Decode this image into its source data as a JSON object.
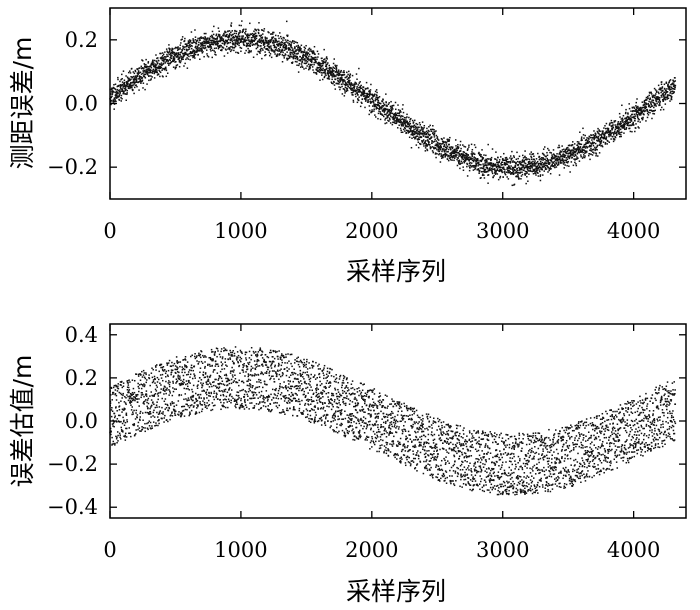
{
  "chart_data": [
    {
      "type": "scatter",
      "title": "",
      "xlabel": "采样序列",
      "ylabel": "测距误差/m",
      "xlim": [
        0,
        4400
      ],
      "ylim": [
        -0.3,
        0.3
      ],
      "x_ticks": [
        0,
        1000,
        2000,
        3000,
        4000
      ],
      "y_ticks": [
        -0.2,
        0.0,
        0.2
      ],
      "x_tick_labels": [
        "0",
        "1000",
        "2000",
        "3000",
        "4000"
      ],
      "y_tick_labels": [
        "−0.2",
        "0.0",
        "0.2"
      ],
      "grid": false,
      "series": [
        {
          "n_points": 4320,
          "trend": {
            "amplitude": 0.2,
            "period": 4200,
            "phase_offset": 0.02,
            "offset": 0.0
          },
          "spread": 0.025,
          "sampled_trend": {
            "x": [
              0,
              500,
              1000,
              1100,
              1500,
              2000,
              2500,
              3000,
              3150,
              3500,
              4000,
              4320
            ],
            "y": [
              0.02,
              0.15,
              0.21,
              0.22,
              0.18,
              0.05,
              -0.09,
              -0.19,
              -0.2,
              -0.17,
              -0.06,
              0.02
            ]
          }
        }
      ]
    },
    {
      "type": "scatter",
      "title": "",
      "xlabel": "采样序列",
      "ylabel": "误差估值/m",
      "xlim": [
        0,
        4400
      ],
      "ylim": [
        -0.45,
        0.45
      ],
      "x_ticks": [
        0,
        1000,
        2000,
        3000,
        4000
      ],
      "y_ticks": [
        -0.4,
        -0.2,
        0.0,
        0.2,
        0.4
      ],
      "x_tick_labels": [
        "0",
        "1000",
        "2000",
        "3000",
        "4000"
      ],
      "y_tick_labels": [
        "−0.4",
        "−0.2",
        "0.0",
        "0.2",
        "0.4"
      ],
      "grid": false,
      "series": [
        {
          "n_points": 4320,
          "trend": {
            "amplitude": 0.2,
            "period": 4200,
            "phase_offset": 0.02,
            "offset": 0.0
          },
          "spread": 0.1,
          "sampled_trend": {
            "x": [
              0,
              500,
              1000,
              1100,
              1500,
              2000,
              2500,
              3000,
              3150,
              3500,
              4000,
              4320
            ],
            "y": [
              0.02,
              0.15,
              0.21,
              0.22,
              0.18,
              0.05,
              -0.09,
              -0.19,
              -0.2,
              -0.17,
              -0.06,
              0.02
            ]
          }
        }
      ]
    }
  ]
}
